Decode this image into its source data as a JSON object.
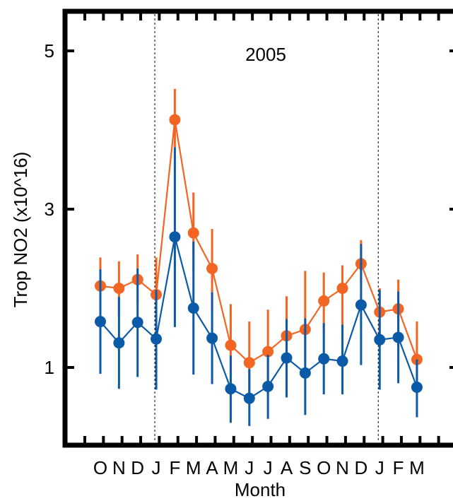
{
  "chart_data": {
    "type": "line",
    "title": "",
    "xlabel": "Month",
    "ylabel": "Trop NO2 (x10^16)",
    "ylim": [
      0,
      5.5
    ],
    "yticks": [
      1,
      3,
      5
    ],
    "x": [
      "O",
      "N",
      "D",
      "J",
      "F",
      "M",
      "A",
      "M",
      "J",
      "J",
      "A",
      "S",
      "O",
      "N",
      "D",
      "J",
      "F",
      "M"
    ],
    "annotations": [
      {
        "text": "2005"
      }
    ],
    "dividers_after_index": [
      3,
      15
    ],
    "grid": false,
    "legend": "none",
    "series": [
      {
        "color": "#f26522",
        "values": [
          2.03,
          2.0,
          2.11,
          1.92,
          4.13,
          2.7,
          2.25,
          1.28,
          1.06,
          1.2,
          1.4,
          1.48,
          1.84,
          2.0,
          2.31,
          1.7,
          1.74,
          1.1
        ],
        "err_low": [
          1.65,
          1.66,
          1.82,
          1.33,
          3.76,
          2.22,
          1.73,
          0.76,
          0.6,
          0.65,
          0.95,
          1.06,
          1.44,
          1.52,
          2.05,
          1.34,
          1.26,
          0.68
        ],
        "err_high": [
          2.39,
          2.34,
          2.43,
          2.39,
          4.52,
          3.21,
          2.75,
          1.8,
          1.58,
          1.73,
          1.9,
          2.22,
          2.2,
          2.29,
          2.61,
          2.0,
          2.11,
          1.58
        ]
      },
      {
        "color": "#0b5aa8",
        "values": [
          1.58,
          1.31,
          1.57,
          1.36,
          2.65,
          1.75,
          1.37,
          0.73,
          0.61,
          0.76,
          1.12,
          0.93,
          1.11,
          1.08,
          1.79,
          1.35,
          1.38,
          0.75
        ],
        "err_low": [
          0.92,
          0.73,
          0.88,
          0.72,
          1.51,
          0.91,
          0.79,
          0.3,
          0.26,
          0.35,
          0.62,
          0.4,
          0.66,
          0.66,
          1.03,
          0.72,
          0.8,
          0.37
        ],
        "err_high": [
          2.24,
          1.89,
          2.25,
          1.98,
          3.78,
          2.59,
          1.95,
          1.15,
          0.98,
          1.16,
          1.61,
          1.62,
          1.56,
          1.54,
          2.56,
          1.98,
          1.96,
          1.1
        ]
      }
    ]
  }
}
